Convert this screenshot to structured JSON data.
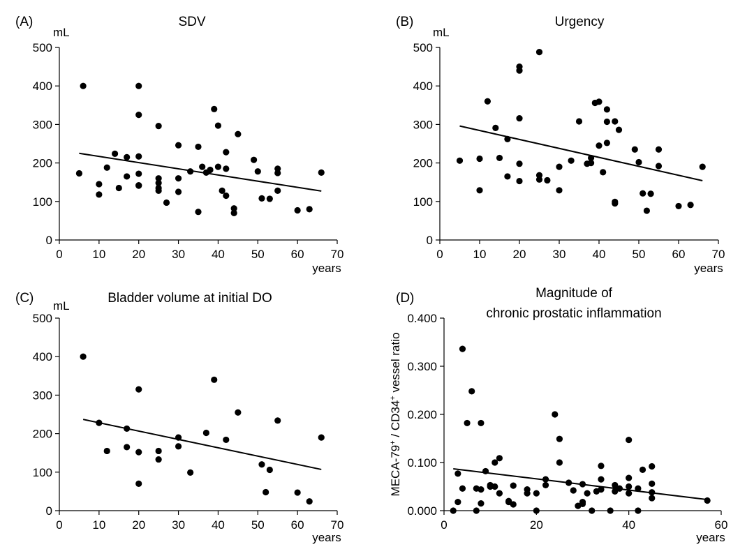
{
  "chart_data": [
    {
      "panel": "(A)",
      "type": "scatter",
      "title": "SDV",
      "ylabel": "mL",
      "xlabel": "years",
      "xlim": [
        0,
        70
      ],
      "ylim": [
        0,
        500
      ],
      "xticks": [
        "0",
        "10",
        "20",
        "30",
        "40",
        "50",
        "60",
        "70"
      ],
      "yticks": [
        "0",
        "100",
        "200",
        "300",
        "400",
        "500"
      ],
      "x": [
        5,
        6,
        10,
        10,
        12,
        14,
        15,
        17,
        17,
        20,
        20,
        20,
        20,
        20,
        20,
        25,
        25,
        25,
        25,
        25,
        27,
        30,
        30,
        30,
        33,
        35,
        35,
        36,
        37,
        38,
        39,
        40,
        40,
        41,
        42,
        42,
        42,
        44,
        44,
        45,
        49,
        50,
        51,
        53,
        55,
        55,
        55,
        60,
        63,
        66
      ],
      "y": [
        173,
        400,
        145,
        118,
        188,
        224,
        135,
        215,
        165,
        400,
        325,
        217,
        172,
        141,
        142,
        160,
        148,
        135,
        128,
        296,
        97,
        246,
        160,
        125,
        178,
        242,
        73,
        190,
        175,
        182,
        340,
        297,
        190,
        128,
        228,
        185,
        115,
        82,
        70,
        275,
        208,
        178,
        108,
        107,
        185,
        174,
        128,
        77,
        80,
        175
      ],
      "trend": {
        "x": [
          5,
          66
        ],
        "y": [
          225,
          127
        ]
      }
    },
    {
      "panel": "(B)",
      "type": "scatter",
      "title": "Urgency",
      "ylabel": "mL",
      "xlabel": "years",
      "xlim": [
        0,
        70
      ],
      "ylim": [
        0,
        500
      ],
      "xticks": [
        "0",
        "10",
        "20",
        "30",
        "40",
        "50",
        "60",
        "70"
      ],
      "yticks": [
        "0",
        "100",
        "200",
        "300",
        "400",
        "500"
      ],
      "x": [
        5,
        10,
        10,
        12,
        14,
        15,
        17,
        17,
        20,
        20,
        20,
        20,
        20,
        25,
        25,
        25,
        27,
        30,
        30,
        33,
        35,
        37,
        38,
        38,
        39,
        40,
        40,
        41,
        42,
        42,
        42,
        44,
        44,
        44,
        45,
        49,
        50,
        51,
        52,
        53,
        55,
        55,
        60,
        63,
        66
      ],
      "y": [
        206,
        211,
        129,
        360,
        291,
        213,
        262,
        165,
        450,
        440,
        316,
        198,
        153,
        488,
        168,
        157,
        155,
        190,
        129,
        206,
        308,
        198,
        200,
        213,
        356,
        359,
        245,
        176,
        339,
        307,
        252,
        308,
        99,
        95,
        286,
        235,
        202,
        121,
        76,
        120,
        235,
        192,
        88,
        91,
        190
      ],
      "trend": {
        "x": [
          5,
          66
        ],
        "y": [
          296,
          154
        ]
      }
    },
    {
      "panel": "(C)",
      "type": "scatter",
      "title": "Bladder volume at initial DO",
      "ylabel": "mL",
      "xlabel": "years",
      "xlim": [
        0,
        70
      ],
      "ylim": [
        0,
        500
      ],
      "xticks": [
        "0",
        "10",
        "20",
        "30",
        "40",
        "50",
        "60",
        "70"
      ],
      "yticks": [
        "0",
        "100",
        "200",
        "300",
        "400",
        "500"
      ],
      "x": [
        6,
        10,
        12,
        17,
        17,
        20,
        20,
        20,
        25,
        25,
        30,
        30,
        33,
        37,
        39,
        42,
        45,
        51,
        52,
        53,
        55,
        60,
        63,
        66
      ],
      "y": [
        400,
        228,
        155,
        213,
        165,
        315,
        152,
        70,
        155,
        133,
        190,
        167,
        99,
        202,
        340,
        184,
        255,
        120,
        48,
        106,
        234,
        47,
        24,
        190
      ],
      "trend": {
        "x": [
          6,
          66
        ],
        "y": [
          237,
          107
        ]
      }
    },
    {
      "panel": "(D)",
      "type": "scatter",
      "title": "Magnitude of\nchronic prostatic inflammation",
      "ylabel": "MECA-79+ / CD34+ vessel ratio",
      "xlabel": "years",
      "xlim": [
        0,
        60
      ],
      "ylim": [
        0,
        0.4
      ],
      "xticks": [
        "0",
        "20",
        "40",
        "60"
      ],
      "yticks": [
        "0.000",
        "0.100",
        "0.200",
        "0.300",
        "0.400"
      ],
      "x": [
        2,
        3,
        3,
        4,
        4,
        5,
        6,
        7,
        7,
        8,
        8,
        8,
        9,
        10,
        10,
        11,
        11,
        12,
        12,
        14,
        14,
        15,
        15,
        18,
        18,
        20,
        20,
        22,
        22,
        24,
        25,
        25,
        27,
        28,
        29,
        30,
        30,
        30,
        31,
        32,
        33,
        34,
        34,
        34,
        36,
        37,
        37,
        38,
        40,
        40,
        40,
        40,
        42,
        42,
        43,
        45,
        45,
        45,
        45,
        57
      ],
      "y": [
        0.0,
        0.077,
        0.018,
        0.336,
        0.046,
        0.182,
        0.248,
        0.046,
        0.0,
        0.182,
        0.044,
        0.015,
        0.082,
        0.053,
        0.05,
        0.1,
        0.05,
        0.109,
        0.036,
        0.018,
        0.02,
        0.052,
        0.013,
        0.044,
        0.036,
        0.036,
        0.0,
        0.065,
        0.053,
        0.2,
        0.149,
        0.1,
        0.058,
        0.042,
        0.01,
        0.055,
        0.018,
        0.014,
        0.036,
        0.0,
        0.04,
        0.093,
        0.065,
        0.044,
        0.0,
        0.053,
        0.04,
        0.046,
        0.147,
        0.068,
        0.05,
        0.036,
        0.046,
        0.0,
        0.085,
        0.092,
        0.056,
        0.038,
        0.026,
        0.021
      ],
      "trend": {
        "x": [
          2,
          57
        ],
        "y": [
          0.087,
          0.023
        ]
      }
    }
  ]
}
